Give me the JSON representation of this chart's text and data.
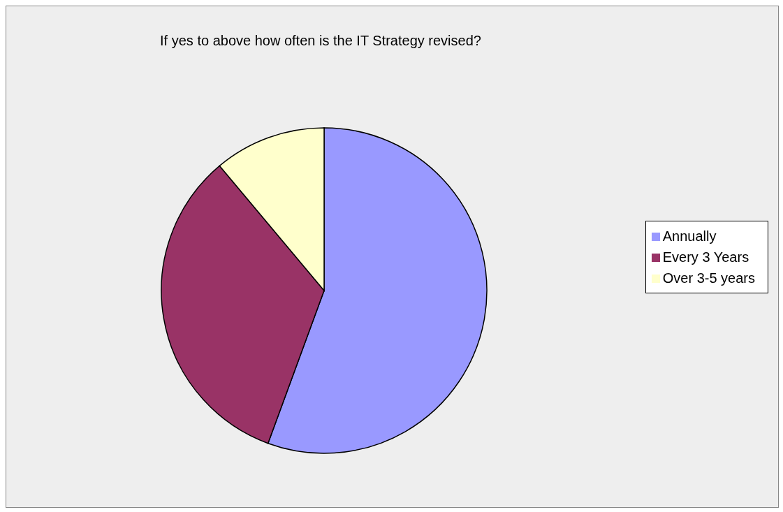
{
  "chart_data": {
    "type": "pie",
    "title": "If yes to above how often is the IT Strategy revised?",
    "categories": [
      "Annually",
      "Every 3 Years",
      "Over 3-5 years"
    ],
    "values": [
      55.6,
      33.3,
      11.1
    ],
    "colors": [
      "#9999ff",
      "#993366",
      "#ffffcc"
    ],
    "legend": "right"
  }
}
